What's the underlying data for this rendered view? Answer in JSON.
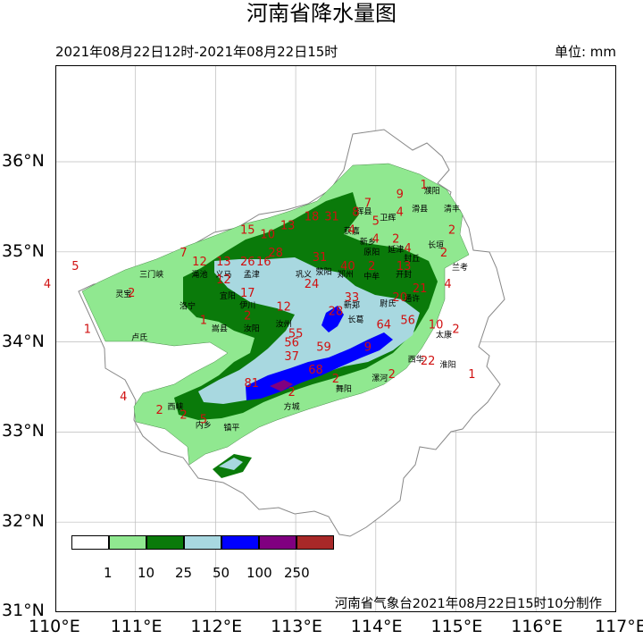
{
  "title": "河南省降水量图",
  "time_range": "2021年08月22日12时-2021年08月22日15时",
  "unit_label": "单位: mm",
  "credit": "河南省气象台2021年08月22日15时10分制作",
  "lat_labels": [
    "36°N",
    "35°N",
    "34°N",
    "33°N",
    "32°N",
    "31°N"
  ],
  "lon_labels": [
    "110°E",
    "111°E",
    "112°E",
    "113°E",
    "114°E",
    "115°E",
    "116°E",
    "117°E"
  ],
  "legend": {
    "colors": [
      "#ffffff",
      "#90e890",
      "#0a7a0a",
      "#a8d8e0",
      "#0000ff",
      "#800080",
      "#a82828"
    ],
    "ticks": [
      "1",
      "10",
      "25",
      "50",
      "100",
      "250"
    ]
  },
  "stations": [
    {
      "v": "1",
      "lon": 114.6,
      "lat": 35.7
    },
    {
      "v": "9",
      "lon": 114.3,
      "lat": 35.6
    },
    {
      "v": "7",
      "lon": 113.9,
      "lat": 35.5
    },
    {
      "v": "4",
      "lon": 114.3,
      "lat": 35.4
    },
    {
      "v": "5",
      "lon": 114.0,
      "lat": 35.3
    },
    {
      "v": "2",
      "lon": 114.95,
      "lat": 35.2
    },
    {
      "v": "4",
      "lon": 113.7,
      "lat": 35.2
    },
    {
      "v": "4",
      "lon": 114.0,
      "lat": 35.1
    },
    {
      "v": "2",
      "lon": 114.25,
      "lat": 35.1
    },
    {
      "v": "4",
      "lon": 114.4,
      "lat": 35.0
    },
    {
      "v": "2",
      "lon": 114.85,
      "lat": 34.95
    },
    {
      "v": "4",
      "lon": 114.9,
      "lat": 34.6
    },
    {
      "v": "7",
      "lon": 111.6,
      "lat": 34.95
    },
    {
      "v": "5",
      "lon": 110.25,
      "lat": 34.8
    },
    {
      "v": "4",
      "lon": 109.9,
      "lat": 34.6
    },
    {
      "v": "12",
      "lon": 111.8,
      "lat": 34.85
    },
    {
      "v": "13",
      "lon": 112.1,
      "lat": 34.85
    },
    {
      "v": "26",
      "lon": 112.4,
      "lat": 34.85
    },
    {
      "v": "16",
      "lon": 112.6,
      "lat": 34.85
    },
    {
      "v": "28",
      "lon": 112.75,
      "lat": 34.95
    },
    {
      "v": "31",
      "lon": 113.3,
      "lat": 34.9
    },
    {
      "v": "40",
      "lon": 113.65,
      "lat": 34.8
    },
    {
      "v": "2",
      "lon": 113.95,
      "lat": 34.8
    },
    {
      "v": "13",
      "lon": 114.35,
      "lat": 34.8
    },
    {
      "v": "10",
      "lon": 112.65,
      "lat": 35.15
    },
    {
      "v": "15",
      "lon": 112.4,
      "lat": 35.2
    },
    {
      "v": "13",
      "lon": 112.9,
      "lat": 35.25
    },
    {
      "v": "18",
      "lon": 113.2,
      "lat": 35.35
    },
    {
      "v": "31",
      "lon": 113.45,
      "lat": 35.35
    },
    {
      "v": "8",
      "lon": 113.75,
      "lat": 35.4
    },
    {
      "v": "21",
      "lon": 114.55,
      "lat": 34.55
    },
    {
      "v": "20",
      "lon": 114.3,
      "lat": 34.45
    },
    {
      "v": "24",
      "lon": 113.2,
      "lat": 34.6
    },
    {
      "v": "12",
      "lon": 112.1,
      "lat": 34.65
    },
    {
      "v": "17",
      "lon": 112.4,
      "lat": 34.5
    },
    {
      "v": "12",
      "lon": 112.85,
      "lat": 34.35
    },
    {
      "v": "33",
      "lon": 113.7,
      "lat": 34.45
    },
    {
      "v": "28",
      "lon": 113.5,
      "lat": 34.3
    },
    {
      "v": "55",
      "lon": 113.0,
      "lat": 34.05
    },
    {
      "v": "64",
      "lon": 114.1,
      "lat": 34.15
    },
    {
      "v": "56",
      "lon": 114.4,
      "lat": 34.2
    },
    {
      "v": "10",
      "lon": 114.75,
      "lat": 34.15
    },
    {
      "v": "2",
      "lon": 110.95,
      "lat": 34.5
    },
    {
      "v": "2",
      "lon": 112.4,
      "lat": 34.25
    },
    {
      "v": "1",
      "lon": 110.4,
      "lat": 34.1
    },
    {
      "v": "1",
      "lon": 111.85,
      "lat": 34.2
    },
    {
      "v": "2",
      "lon": 115.0,
      "lat": 34.1
    },
    {
      "v": "59",
      "lon": 113.35,
      "lat": 33.9
    },
    {
      "v": "9",
      "lon": 113.9,
      "lat": 33.9
    },
    {
      "v": "56",
      "lon": 112.95,
      "lat": 33.95
    },
    {
      "v": "37",
      "lon": 112.95,
      "lat": 33.8
    },
    {
      "v": "68",
      "lon": 113.25,
      "lat": 33.65
    },
    {
      "v": "81",
      "lon": 112.45,
      "lat": 33.5
    },
    {
      "v": "2",
      "lon": 113.5,
      "lat": 33.55
    },
    {
      "v": "2",
      "lon": 114.2,
      "lat": 33.6
    },
    {
      "v": "22",
      "lon": 114.65,
      "lat": 33.75
    },
    {
      "v": "1",
      "lon": 115.2,
      "lat": 33.6
    },
    {
      "v": "4",
      "lon": 110.85,
      "lat": 33.35
    },
    {
      "v": "2",
      "lon": 111.3,
      "lat": 33.2
    },
    {
      "v": "2",
      "lon": 111.6,
      "lat": 33.15
    },
    {
      "v": "5",
      "lon": 111.85,
      "lat": 33.1
    },
    {
      "v": "2",
      "lon": 112.95,
      "lat": 33.4
    }
  ],
  "cities": [
    {
      "n": "濮阳",
      "lon": 114.7,
      "lat": 35.65
    },
    {
      "n": "清丰",
      "lon": 114.95,
      "lat": 35.45
    },
    {
      "n": "辉县",
      "lon": 113.85,
      "lat": 35.42
    },
    {
      "n": "卫辉",
      "lon": 114.15,
      "lat": 35.35
    },
    {
      "n": "滑县",
      "lon": 114.55,
      "lat": 35.45
    },
    {
      "n": "获嘉",
      "lon": 113.7,
      "lat": 35.2
    },
    {
      "n": "新乡",
      "lon": 113.9,
      "lat": 35.08
    },
    {
      "n": "延津",
      "lon": 114.25,
      "lat": 35.0
    },
    {
      "n": "长垣",
      "lon": 114.75,
      "lat": 35.05
    },
    {
      "n": "封丘",
      "lon": 114.45,
      "lat": 34.9
    },
    {
      "n": "原阳",
      "lon": 113.95,
      "lat": 34.97
    },
    {
      "n": "兰考",
      "lon": 115.05,
      "lat": 34.8
    },
    {
      "n": "三门峡",
      "lon": 111.2,
      "lat": 34.72
    },
    {
      "n": "灵宝",
      "lon": 110.85,
      "lat": 34.5
    },
    {
      "n": "渑池",
      "lon": 111.8,
      "lat": 34.72
    },
    {
      "n": "义马",
      "lon": 112.1,
      "lat": 34.72
    },
    {
      "n": "孟津",
      "lon": 112.45,
      "lat": 34.72
    },
    {
      "n": "巩义",
      "lon": 113.1,
      "lat": 34.72
    },
    {
      "n": "荥阳",
      "lon": 113.35,
      "lat": 34.75
    },
    {
      "n": "郑州",
      "lon": 113.62,
      "lat": 34.72
    },
    {
      "n": "中牟",
      "lon": 113.95,
      "lat": 34.7
    },
    {
      "n": "开封",
      "lon": 114.35,
      "lat": 34.72
    },
    {
      "n": "洛宁",
      "lon": 111.65,
      "lat": 34.37
    },
    {
      "n": "宜阳",
      "lon": 112.15,
      "lat": 34.48
    },
    {
      "n": "伊川",
      "lon": 112.4,
      "lat": 34.38
    },
    {
      "n": "新郑",
      "lon": 113.7,
      "lat": 34.38
    },
    {
      "n": "尉氏",
      "lon": 114.15,
      "lat": 34.4
    },
    {
      "n": "通许",
      "lon": 114.45,
      "lat": 34.45
    },
    {
      "n": "卢氏",
      "lon": 111.05,
      "lat": 34.02
    },
    {
      "n": "嵩县",
      "lon": 112.05,
      "lat": 34.12
    },
    {
      "n": "汝阳",
      "lon": 112.45,
      "lat": 34.12
    },
    {
      "n": "汝州",
      "lon": 112.85,
      "lat": 34.17
    },
    {
      "n": "长葛",
      "lon": 113.75,
      "lat": 34.22
    },
    {
      "n": "太康",
      "lon": 114.85,
      "lat": 34.05
    },
    {
      "n": "西华",
      "lon": 114.5,
      "lat": 33.78
    },
    {
      "n": "淮阳",
      "lon": 114.9,
      "lat": 33.72
    },
    {
      "n": "西峡",
      "lon": 111.5,
      "lat": 33.25
    },
    {
      "n": "内乡",
      "lon": 111.85,
      "lat": 33.05
    },
    {
      "n": "镇平",
      "lon": 112.2,
      "lat": 33.02
    },
    {
      "n": "方城",
      "lon": 112.95,
      "lat": 33.25
    },
    {
      "n": "舞阳",
      "lon": 113.6,
      "lat": 33.45
    },
    {
      "n": "漯河",
      "lon": 114.05,
      "lat": 33.57
    }
  ]
}
